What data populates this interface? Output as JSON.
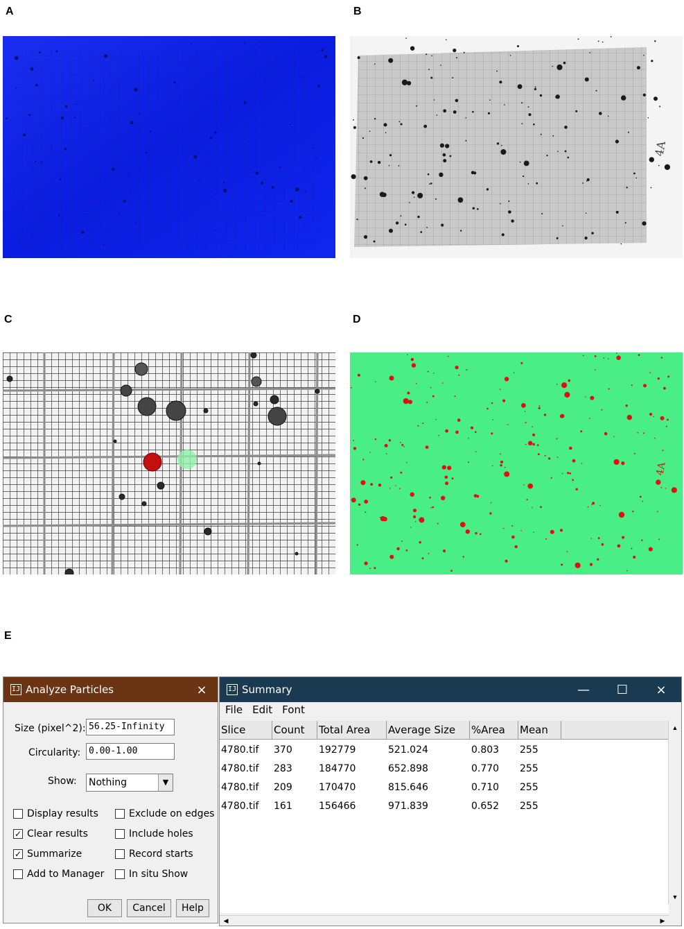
{
  "panels": {
    "a": "A",
    "b": "B",
    "c": "C",
    "d": "D",
    "e": "E"
  },
  "colors": {
    "panel_a_bg": "#0a1de0",
    "panel_b_bg": "#d6d6d6",
    "panel_d_bg": "#49ef86",
    "particle_red": "#e01010",
    "analyze_title_bg": "#6b3514",
    "summary_title_bg": "#1a3a52"
  },
  "analyze_dialog": {
    "title": "Analyze Particles",
    "close_icon": "×",
    "size_label": "Size (pixel^2):",
    "size_value": "56.25-Infinity",
    "circularity_label": "Circularity:",
    "circularity_value": "0.00-1.00",
    "show_label": "Show:",
    "show_value": "Nothing",
    "options": [
      {
        "label": "Display results",
        "checked": false
      },
      {
        "label": "Exclude on edges",
        "checked": false
      },
      {
        "label": "Clear results",
        "checked": true
      },
      {
        "label": "Include holes",
        "checked": false
      },
      {
        "label": "Summarize",
        "checked": true
      },
      {
        "label": "Record starts",
        "checked": false
      },
      {
        "label": "Add to Manager",
        "checked": false
      },
      {
        "label": "In situ Show",
        "checked": false
      }
    ],
    "ok": "OK",
    "cancel": "Cancel",
    "help": "Help"
  },
  "summary_window": {
    "title": "Summary",
    "minimize": "—",
    "maximize": "☐",
    "close": "×",
    "menu": [
      "File",
      "Edit",
      "Font"
    ],
    "columns": [
      "Slice",
      "Count",
      "Total Area",
      "Average Size",
      "%Area",
      "Mean"
    ],
    "rows": [
      [
        "4780.tif",
        "370",
        "192779",
        "521.024",
        "0.803",
        "255"
      ],
      [
        "4780.tif",
        "283",
        "184770",
        "652.898",
        "0.770",
        "255"
      ],
      [
        "4780.tif",
        "209",
        "170470",
        "815.646",
        "0.710",
        "255"
      ],
      [
        "4780.tif",
        "161",
        "156466",
        "971.839",
        "0.652",
        "255"
      ]
    ]
  }
}
